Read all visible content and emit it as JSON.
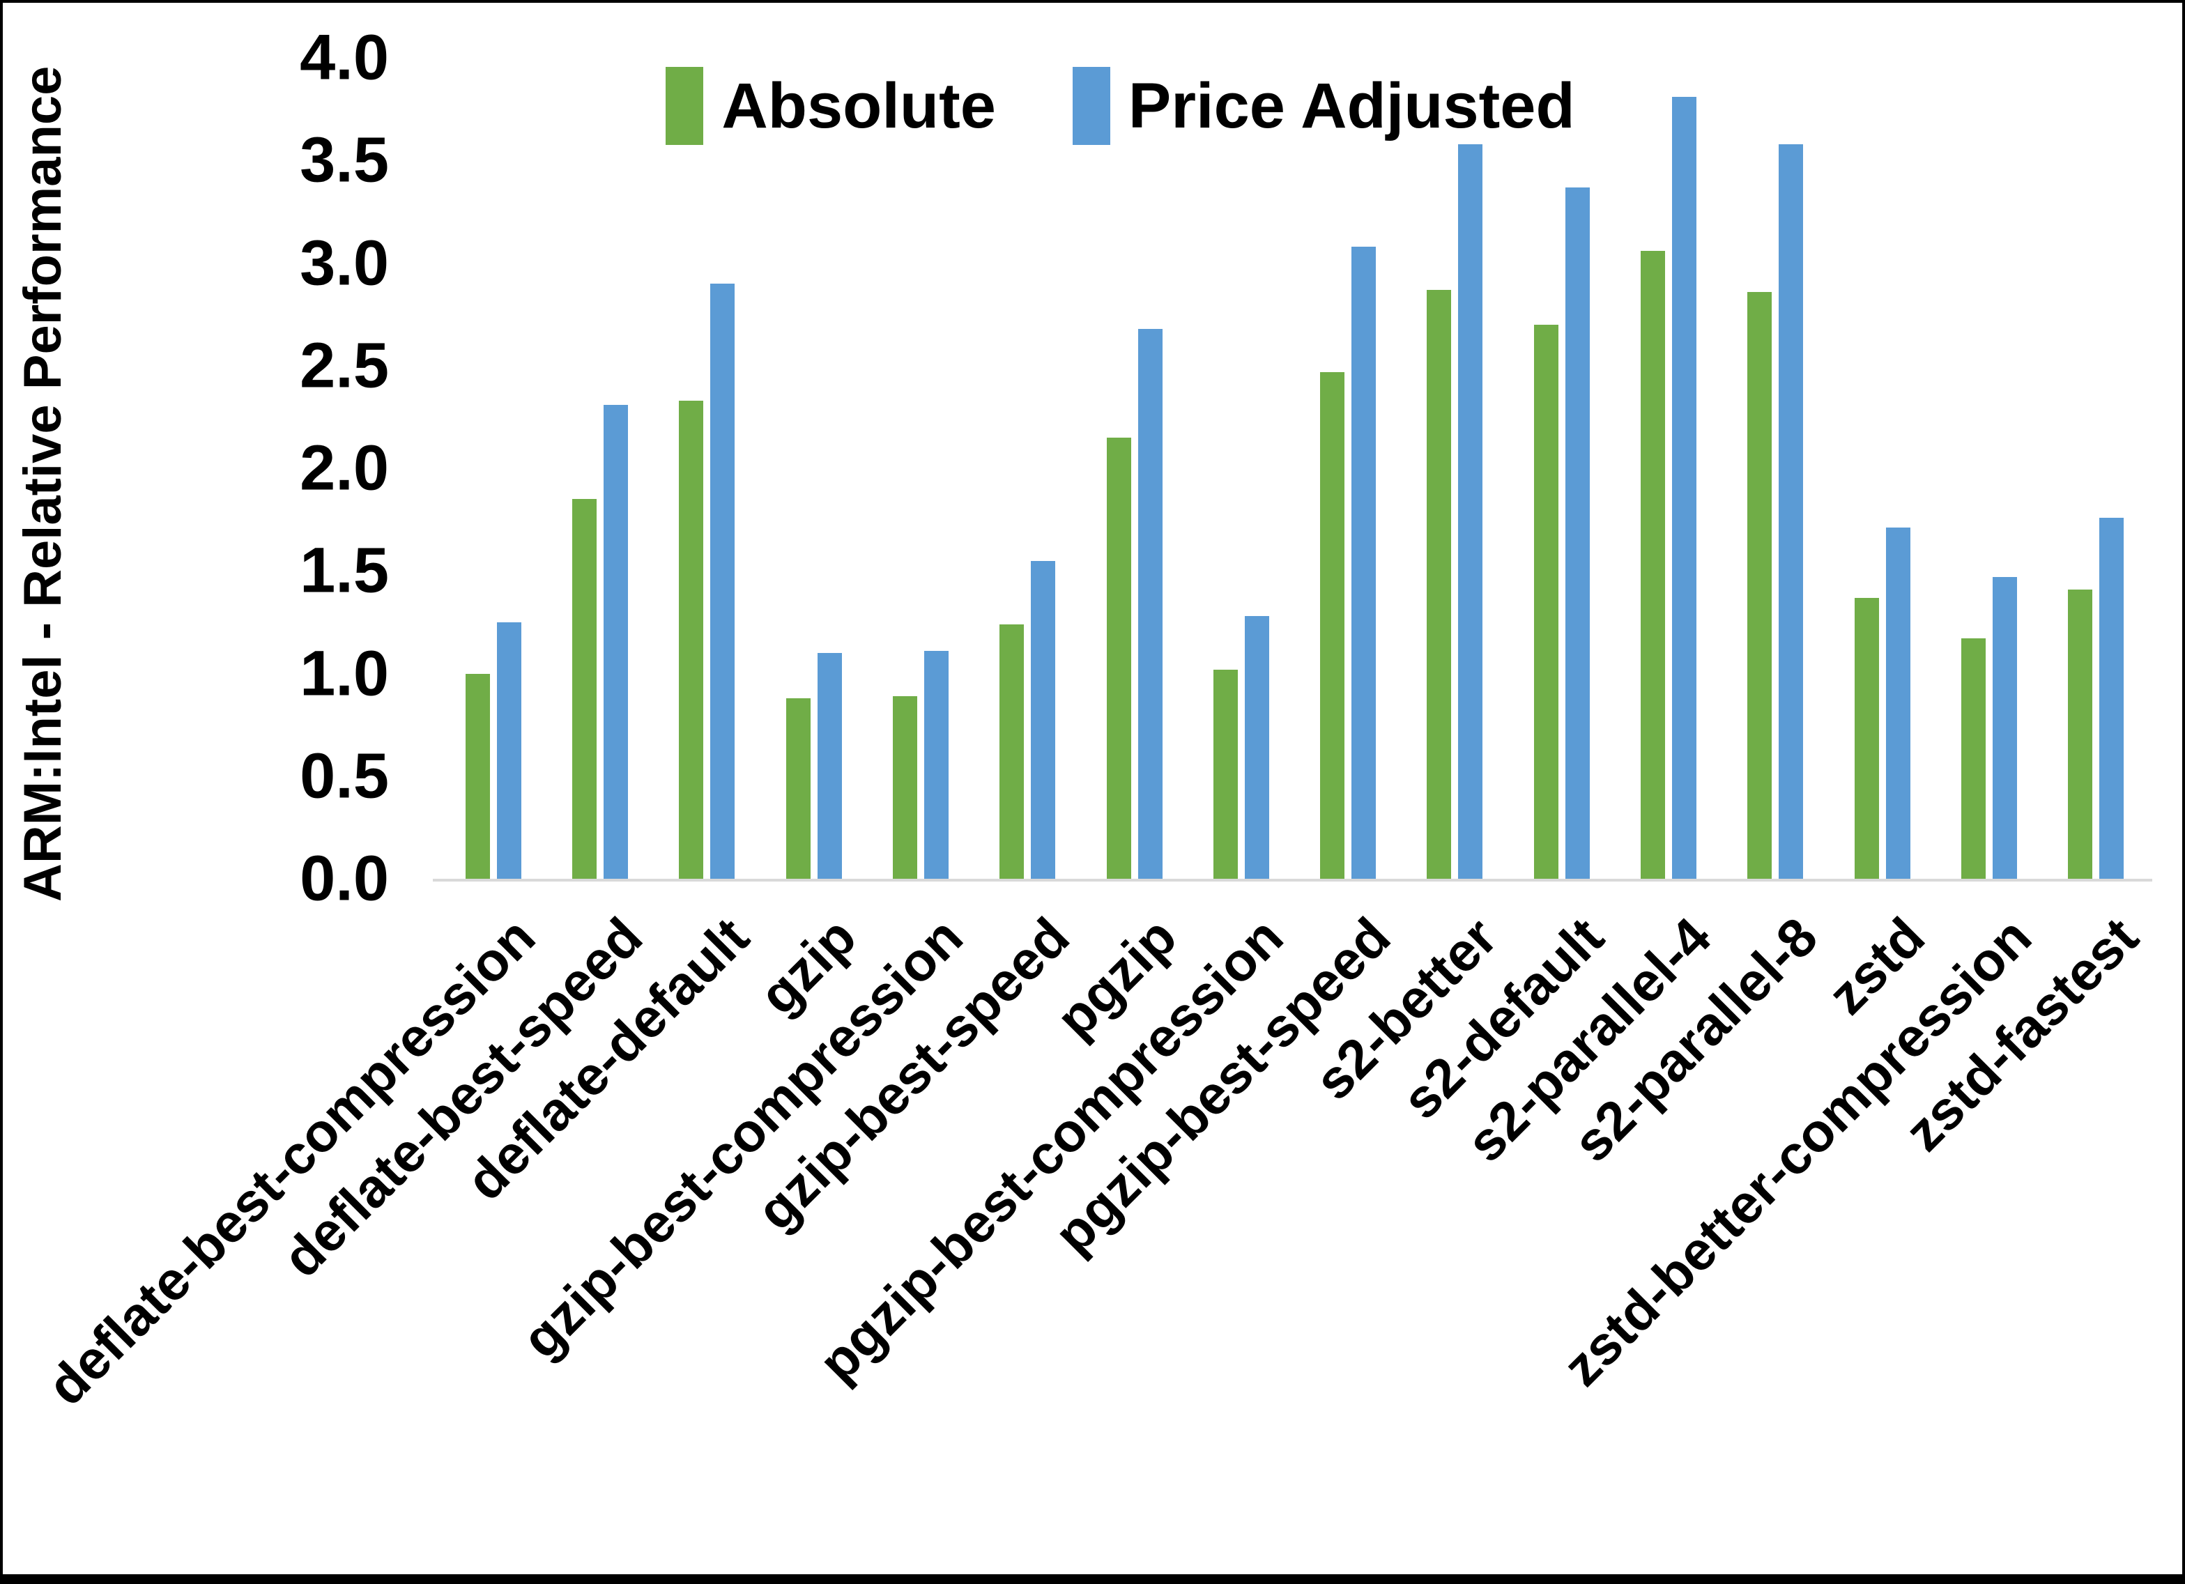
{
  "frame": {
    "background": "#FFFFFF",
    "border_color": "#000000"
  },
  "chart_data": {
    "type": "bar",
    "title": "",
    "xlabel": "",
    "ylabel": "ARM:Intel - Relative Performance",
    "ylim": [
      0.0,
      4.0
    ],
    "ytick_step": 0.5,
    "ytick_decimals": 1,
    "grid": false,
    "legend_position": "top-center",
    "axis_line_color": "#D9D9D9",
    "text_color": "#000000",
    "categories": [
      "deflate-best-compression",
      "deflate-best-speed",
      "deflate-default",
      "gzip",
      "gzip-best-compression",
      "gzip-best-speed",
      "pgzip",
      "pgzip-best-compression",
      "pgzip-best-speed",
      "s2-better",
      "s2-default",
      "s2-parallel-4",
      "s2-parallel-8",
      "zstd",
      "zstd-better-compression",
      "zstd-fastest"
    ],
    "series": [
      {
        "name": "Absolute",
        "color": "#70AD47",
        "values": [
          1.0,
          1.85,
          2.33,
          0.88,
          0.89,
          1.24,
          2.15,
          1.02,
          2.47,
          2.87,
          2.7,
          3.06,
          2.86,
          1.37,
          1.17,
          1.41
        ]
      },
      {
        "name": "Price Adjusted",
        "color": "#5B9BD5",
        "values": [
          1.25,
          2.31,
          2.9,
          1.1,
          1.11,
          1.55,
          2.68,
          1.28,
          3.08,
          3.58,
          3.37,
          3.81,
          3.58,
          1.71,
          1.47,
          1.76
        ]
      }
    ]
  }
}
